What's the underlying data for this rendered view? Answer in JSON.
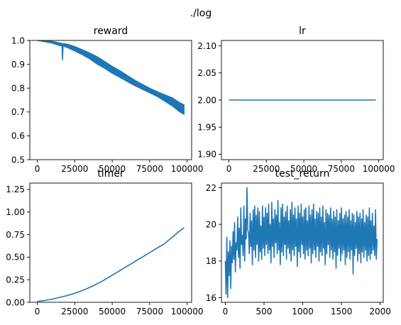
{
  "figure": {
    "suptitle": "./log"
  },
  "colors": {
    "line": "#1f77b4",
    "axes": "#000000",
    "background": "#ffffff"
  },
  "chart_data": [
    {
      "type": "line",
      "title": "reward",
      "xlabel": "",
      "ylabel": "",
      "xlim": [
        -5000,
        103000
      ],
      "ylim": [
        0.5,
        1.0
      ],
      "xticks": [
        0,
        25000,
        50000,
        75000,
        100000
      ],
      "xtick_labels": [
        "0",
        "25000",
        "50000",
        "75000",
        "100000"
      ],
      "yticks": [
        0.5,
        0.6,
        0.7,
        0.8,
        0.9,
        1.0
      ],
      "ytick_labels": [
        "0.5",
        "0.6",
        "0.7",
        "0.8",
        "0.9",
        "1.0"
      ],
      "series": [
        {
          "x": [
            0,
            5000,
            10000,
            15000,
            16500,
            16800,
            17200,
            20000,
            25000,
            30000,
            35000,
            40000,
            45000,
            50000,
            55000,
            60000,
            65000,
            70000,
            75000,
            80000,
            85000,
            90000,
            95000,
            98000
          ],
          "y": [
            1.0,
            0.997,
            0.993,
            0.985,
            0.983,
            0.92,
            0.983,
            0.978,
            0.966,
            0.952,
            0.937,
            0.917,
            0.898,
            0.878,
            0.86,
            0.84,
            0.822,
            0.806,
            0.79,
            0.775,
            0.76,
            0.745,
            0.72,
            0.71
          ],
          "y_low": [
            1.0,
            0.994,
            0.988,
            0.978,
            0.976,
            0.92,
            0.976,
            0.97,
            0.955,
            0.94,
            0.922,
            0.9,
            0.882,
            0.862,
            0.845,
            0.827,
            0.81,
            0.795,
            0.78,
            0.765,
            0.745,
            0.725,
            0.7,
            0.69
          ],
          "y_high": [
            1.0,
            1.0,
            0.997,
            0.99,
            0.988,
            0.92,
            0.988,
            0.985,
            0.975,
            0.962,
            0.948,
            0.932,
            0.912,
            0.892,
            0.874,
            0.854,
            0.834,
            0.817,
            0.8,
            0.786,
            0.773,
            0.76,
            0.74,
            0.73
          ]
        }
      ]
    },
    {
      "type": "line",
      "title": "lr",
      "xlabel": "",
      "ylabel": "",
      "xlim": [
        -5000,
        103000
      ],
      "ylim": [
        1.89,
        2.11
      ],
      "xticks": [
        0,
        25000,
        50000,
        75000,
        100000
      ],
      "xtick_labels": [
        "0",
        "25000",
        "50000",
        "75000",
        "100000"
      ],
      "yticks": [
        1.9,
        1.95,
        2.0,
        2.05,
        2.1
      ],
      "ytick_labels": [
        "1.90",
        "1.95",
        "2.00",
        "2.05",
        "2.10"
      ],
      "series": [
        {
          "x": [
            0,
            98000
          ],
          "y": [
            2.0,
            2.0
          ]
        }
      ]
    },
    {
      "type": "line",
      "title": "timer",
      "xlabel": "",
      "ylabel": "",
      "xlim": [
        -5000,
        103000
      ],
      "ylim": [
        0.0,
        1.32
      ],
      "xticks": [
        0,
        25000,
        50000,
        75000,
        100000
      ],
      "xtick_labels": [
        "0",
        "25000",
        "50000",
        "75000",
        "100000"
      ],
      "yticks": [
        0.0,
        0.25,
        0.5,
        0.75,
        1.0,
        1.25
      ],
      "ytick_labels": [
        "0.00",
        "0.25",
        "0.50",
        "0.75",
        "1.00",
        "1.25"
      ],
      "series": [
        {
          "x": [
            0,
            5000,
            10000,
            15000,
            20000,
            25000,
            30000,
            35000,
            40000,
            45000,
            50000,
            55000,
            60000,
            65000,
            70000,
            75000,
            80000,
            85000,
            90000,
            95000,
            98000
          ],
          "y": [
            0.01,
            0.02,
            0.035,
            0.055,
            0.075,
            0.1,
            0.13,
            0.165,
            0.205,
            0.25,
            0.3,
            0.35,
            0.4,
            0.45,
            0.5,
            0.55,
            0.6,
            0.65,
            0.72,
            0.79,
            0.825
          ]
        }
      ]
    },
    {
      "type": "line",
      "title": "test_return",
      "xlabel": "",
      "ylabel": "",
      "xlim": [
        -50,
        2040
      ],
      "ylim": [
        15.75,
        22.25
      ],
      "xticks": [
        0,
        500,
        1000,
        1500,
        2000
      ],
      "xtick_labels": [
        "0",
        "500",
        "1000",
        "1500",
        "2000"
      ],
      "yticks": [
        16,
        18,
        20,
        22
      ],
      "ytick_labels": [
        "16",
        "18",
        "20",
        "22"
      ],
      "series": [
        {
          "x": [
            0,
            10,
            20,
            30,
            40,
            50,
            60,
            70,
            80,
            90,
            100,
            110,
            120,
            130,
            140,
            150,
            160,
            170,
            180,
            190,
            200,
            210,
            220,
            230,
            240,
            250,
            260,
            270,
            280,
            290,
            300,
            310,
            320,
            330,
            340,
            350,
            360,
            370,
            380,
            390,
            400,
            410,
            420,
            430,
            440,
            450,
            460,
            470,
            480,
            490,
            500,
            510,
            520,
            530,
            540,
            550,
            560,
            570,
            580,
            590,
            600,
            610,
            620,
            630,
            640,
            650,
            660,
            670,
            680,
            690,
            700,
            710,
            720,
            730,
            740,
            750,
            760,
            770,
            780,
            790,
            800,
            810,
            820,
            830,
            840,
            850,
            860,
            870,
            880,
            890,
            900,
            910,
            920,
            930,
            940,
            950,
            960,
            970,
            980,
            990,
            1000,
            1010,
            1020,
            1030,
            1040,
            1050,
            1060,
            1070,
            1080,
            1090,
            1100,
            1110,
            1120,
            1130,
            1140,
            1150,
            1160,
            1170,
            1180,
            1190,
            1200,
            1210,
            1220,
            1230,
            1240,
            1250,
            1260,
            1270,
            1280,
            1290,
            1300,
            1310,
            1320,
            1330,
            1340,
            1350,
            1360,
            1370,
            1380,
            1390,
            1400,
            1410,
            1420,
            1430,
            1440,
            1450,
            1460,
            1470,
            1480,
            1490,
            1500,
            1510,
            1520,
            1530,
            1540,
            1550,
            1560,
            1570,
            1580,
            1590,
            1600,
            1610,
            1620,
            1630,
            1640,
            1650,
            1660,
            1670,
            1680,
            1690,
            1700,
            1710,
            1720,
            1730,
            1740,
            1750,
            1760,
            1770,
            1780,
            1790,
            1800,
            1810,
            1820,
            1830,
            1840,
            1850,
            1860,
            1870,
            1880,
            1890,
            1900,
            1910,
            1920,
            1930,
            1940,
            1950,
            1960
          ],
          "y": [
            18.0,
            16.2,
            19.3,
            16.0,
            18.5,
            17.2,
            19.1,
            16.5,
            18.8,
            17.9,
            19.6,
            18.1,
            20.1,
            17.4,
            19.0,
            18.6,
            20.4,
            18.2,
            19.8,
            17.6,
            20.9,
            18.9,
            19.4,
            18.3,
            21.0,
            18.0,
            20.3,
            19.2,
            22.0,
            19.7,
            19.5,
            18.4,
            20.6,
            18.8,
            20.2,
            17.8,
            20.8,
            18.6,
            21.0,
            18.2,
            20.5,
            18.9,
            20.9,
            18.0,
            20.7,
            18.5,
            19.9,
            18.1,
            21.0,
            18.7,
            20.4,
            18.3,
            20.9,
            18.9,
            20.6,
            18.4,
            21.1,
            18.6,
            20.0,
            17.9,
            21.2,
            18.8,
            20.3,
            18.2,
            20.8,
            19.0,
            20.5,
            18.4,
            21.3,
            18.6,
            20.1,
            17.8,
            20.9,
            18.5,
            21.1,
            18.3,
            20.4,
            18.9,
            20.7,
            18.1,
            21.0,
            18.7,
            20.2,
            18.4,
            20.8,
            18.0,
            21.2,
            18.6,
            20.5,
            18.3,
            20.9,
            18.8,
            20.3,
            17.7,
            21.0,
            18.5,
            20.6,
            18.2,
            21.1,
            18.9,
            20.4,
            18.4,
            20.8,
            18.1,
            20.9,
            18.6,
            20.2,
            18.3,
            21.0,
            18.7,
            20.5,
            17.9,
            20.8,
            18.4,
            21.1,
            18.6,
            20.3,
            18.2,
            20.7,
            18.8,
            20.6,
            18.0,
            20.9,
            18.5,
            20.4,
            18.3,
            21.0,
            18.7,
            20.1,
            17.8,
            20.8,
            18.4,
            20.6,
            18.9,
            20.5,
            18.2,
            20.9,
            18.6,
            20.3,
            18.1,
            20.7,
            18.5,
            20.4,
            17.6,
            20.8,
            18.3,
            20.2,
            18.7,
            20.6,
            18.0,
            20.9,
            18.4,
            20.3,
            18.6,
            20.5,
            17.8,
            20.7,
            18.2,
            20.4,
            18.5,
            20.8,
            18.1,
            20.2,
            18.6,
            20.6,
            17.3,
            20.5,
            18.3,
            20.1,
            18.7,
            20.7,
            18.0,
            20.4,
            18.4,
            20.6,
            17.9,
            20.3,
            18.5,
            20.8,
            18.2,
            20.1,
            18.6,
            20.5,
            18.0,
            20.4,
            18.3,
            20.9,
            18.1,
            20.2,
            18.4,
            20.6,
            18.6,
            19.9,
            18.3,
            20.8,
            18.1,
            19.2
          ]
        }
      ]
    }
  ]
}
